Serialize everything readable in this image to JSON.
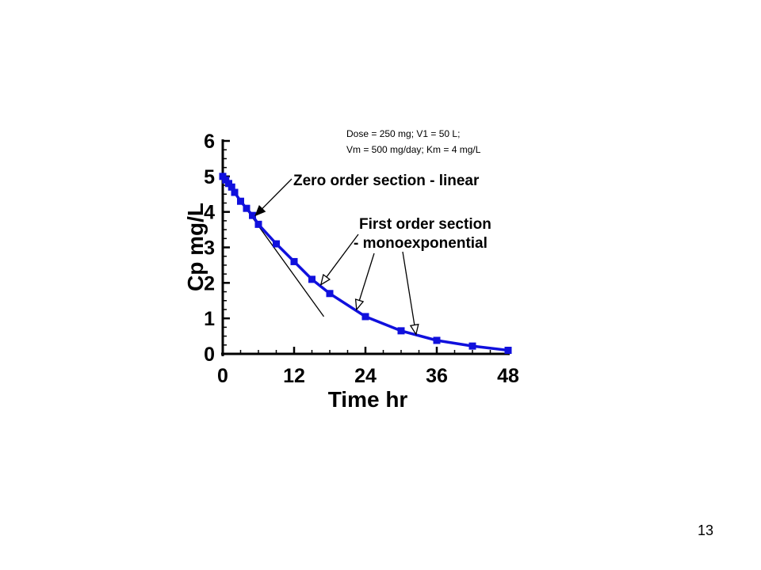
{
  "page_number": "13",
  "chart_data": {
    "type": "line",
    "x_ticks": [
      0,
      12,
      24,
      36,
      48
    ],
    "y_ticks": [
      0,
      1,
      2,
      3,
      4,
      5,
      6
    ],
    "xlabel": "Time hr",
    "ylabel": "Cp mg/L",
    "xlim": [
      0,
      48
    ],
    "ylim": [
      0,
      6
    ],
    "grid": false,
    "series": [
      {
        "color": "#1010dd",
        "marker": "square",
        "x": [
          0,
          0.5,
          1,
          1.5,
          2,
          3,
          4,
          5,
          6,
          9,
          12,
          15,
          18,
          24,
          30,
          36,
          42,
          48
        ],
        "y": [
          5.0,
          4.9,
          4.8,
          4.7,
          4.55,
          4.3,
          4.1,
          3.9,
          3.65,
          3.1,
          2.6,
          2.1,
          1.7,
          1.05,
          0.65,
          0.38,
          0.22,
          0.1
        ]
      }
    ],
    "tangent_line": {
      "color": "#000000",
      "x": [
        0,
        17
      ],
      "y": [
        5.0,
        1.05
      ]
    },
    "params_text": [
      "Dose = 250 mg; V1 = 50 L;",
      "Vm = 500 mg/day; Km = 4 mg/L"
    ],
    "annotations": [
      {
        "lines": [
          "Zero order section - linear"
        ],
        "arrows": [
          {
            "x": 5.5,
            "y": 3.9,
            "style": "filled"
          }
        ]
      },
      {
        "lines": [
          "First order section",
          "- monoexponential"
        ],
        "arrows": [
          {
            "x": 16.5,
            "y": 1.95,
            "style": "open"
          },
          {
            "x": 22.5,
            "y": 1.25,
            "style": "open"
          },
          {
            "x": 32.5,
            "y": 0.55,
            "style": "open"
          }
        ]
      }
    ]
  }
}
